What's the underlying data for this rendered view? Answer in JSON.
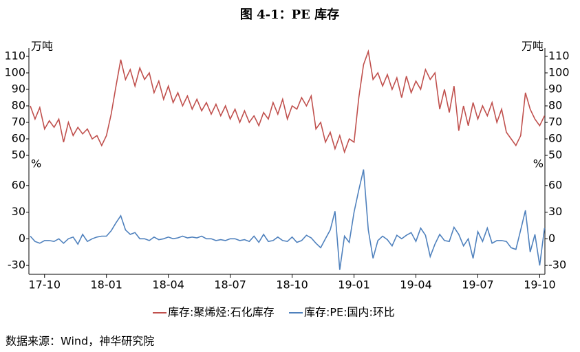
{
  "chart_data": [
    {
      "type": "line",
      "title": "图 4-1：PE 库存",
      "y_label": "万吨",
      "source": "数据来源：Wind，神华研究院",
      "ylim": [
        50,
        115
      ],
      "yticks": [
        50,
        60,
        70,
        80,
        90,
        100,
        110
      ],
      "series": [
        {
          "name": "库存:聚烯烃:石化库存",
          "color": "#c0504d",
          "values": [
            80,
            72,
            79,
            66,
            71,
            67,
            72,
            58,
            70,
            62,
            67,
            63,
            66,
            60,
            62,
            56,
            62,
            75,
            92,
            108,
            96,
            102,
            92,
            103,
            96,
            100,
            88,
            95,
            84,
            92,
            82,
            88,
            80,
            86,
            78,
            84,
            77,
            82,
            75,
            81,
            74,
            80,
            72,
            78,
            70,
            77,
            70,
            74,
            68,
            76,
            72,
            82,
            75,
            84,
            72,
            80,
            78,
            85,
            80,
            86,
            66,
            70,
            58,
            64,
            54,
            62,
            52,
            60,
            58,
            85,
            105,
            113,
            96,
            100,
            92,
            99,
            90,
            97,
            85,
            98,
            88,
            95,
            90,
            102,
            96,
            100,
            78,
            90,
            76,
            92,
            65,
            80,
            68,
            82,
            72,
            80,
            74,
            82,
            70,
            78,
            64,
            60,
            56,
            62,
            88,
            78,
            72,
            68,
            74
          ]
        }
      ]
    },
    {
      "type": "line",
      "y_label": "%",
      "ylim": [
        -40,
        80
      ],
      "yticks": [
        -30,
        0,
        30,
        60
      ],
      "categories": [
        null,
        null,
        null,
        "17-10",
        null,
        null,
        null,
        null,
        null,
        null,
        null,
        null,
        null,
        null,
        null,
        null,
        "18-01",
        null,
        null,
        null,
        null,
        null,
        null,
        null,
        null,
        null,
        null,
        null,
        null,
        "18-04",
        null,
        null,
        null,
        null,
        null,
        null,
        null,
        null,
        null,
        null,
        null,
        null,
        "18-07",
        null,
        null,
        null,
        null,
        null,
        null,
        null,
        null,
        null,
        null,
        null,
        null,
        "18-10",
        null,
        null,
        null,
        null,
        null,
        null,
        null,
        null,
        null,
        null,
        null,
        null,
        "19-01",
        null,
        null,
        null,
        null,
        null,
        null,
        null,
        null,
        null,
        null,
        null,
        null,
        "19-04",
        null,
        null,
        null,
        null,
        null,
        null,
        null,
        null,
        null,
        null,
        null,
        null,
        "19-07",
        null,
        null,
        null,
        null,
        null,
        null,
        null,
        null,
        null,
        null,
        null,
        null,
        "19-10",
        null
      ],
      "series": [
        {
          "name": "库存:PE:国内:环比",
          "color": "#4f81bd",
          "values": [
            3,
            -3,
            -5,
            -2,
            -2,
            -3,
            0,
            -5,
            0,
            2,
            -6,
            5,
            -3,
            0,
            2,
            3,
            3,
            9,
            18,
            26,
            10,
            5,
            7,
            0,
            0,
            -2,
            2,
            -1,
            0,
            2,
            0,
            1,
            3,
            1,
            2,
            1,
            3,
            0,
            0,
            -2,
            -1,
            -2,
            0,
            0,
            -2,
            -1,
            -3,
            3,
            -4,
            5,
            -3,
            -2,
            2,
            -2,
            -3,
            2,
            -4,
            -2,
            4,
            1,
            -5,
            -10,
            0,
            10,
            31,
            -35,
            3,
            -4,
            30,
            55,
            78,
            10,
            -22,
            -2,
            3,
            -1,
            -8,
            4,
            0,
            4,
            7,
            -3,
            12,
            4,
            -20,
            -6,
            5,
            -2,
            -3,
            13,
            5,
            -8,
            0,
            -22,
            8,
            -3,
            12,
            -5,
            -2,
            -2,
            -3,
            -10,
            -12,
            10,
            32,
            -15,
            5,
            -30,
            12
          ]
        }
      ]
    }
  ]
}
